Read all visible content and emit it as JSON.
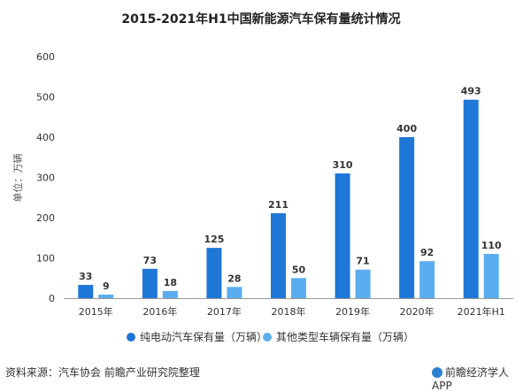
{
  "chart_data": {
    "type": "bar",
    "title": "2015-2021年H1中国新能源汽车保有量统计情况",
    "ylabel": "单位：万辆",
    "xlabel": "",
    "ylim": [
      0,
      600
    ],
    "yticks": [
      "0",
      "100",
      "200",
      "300",
      "400",
      "500",
      "600"
    ],
    "categories": [
      "2015年",
      "2016年",
      "2017年",
      "2018年",
      "2019年",
      "2020年",
      "2021年H1"
    ],
    "grid": false,
    "legend_position": "bottom",
    "series": [
      {
        "name": "纯电动汽车保有量（万辆）",
        "color": "#1f77d8",
        "values": [
          33,
          73,
          125,
          211,
          310,
          400,
          493
        ]
      },
      {
        "name": "其他类型车辆保有量（万辆）",
        "color": "#5aaeef",
        "values": [
          9,
          18,
          28,
          50,
          71,
          92,
          110
        ]
      }
    ]
  },
  "footer": {
    "source": "资料来源：汽车协会 前瞻产业研究院整理",
    "brand": "前瞻经济学人APP"
  }
}
